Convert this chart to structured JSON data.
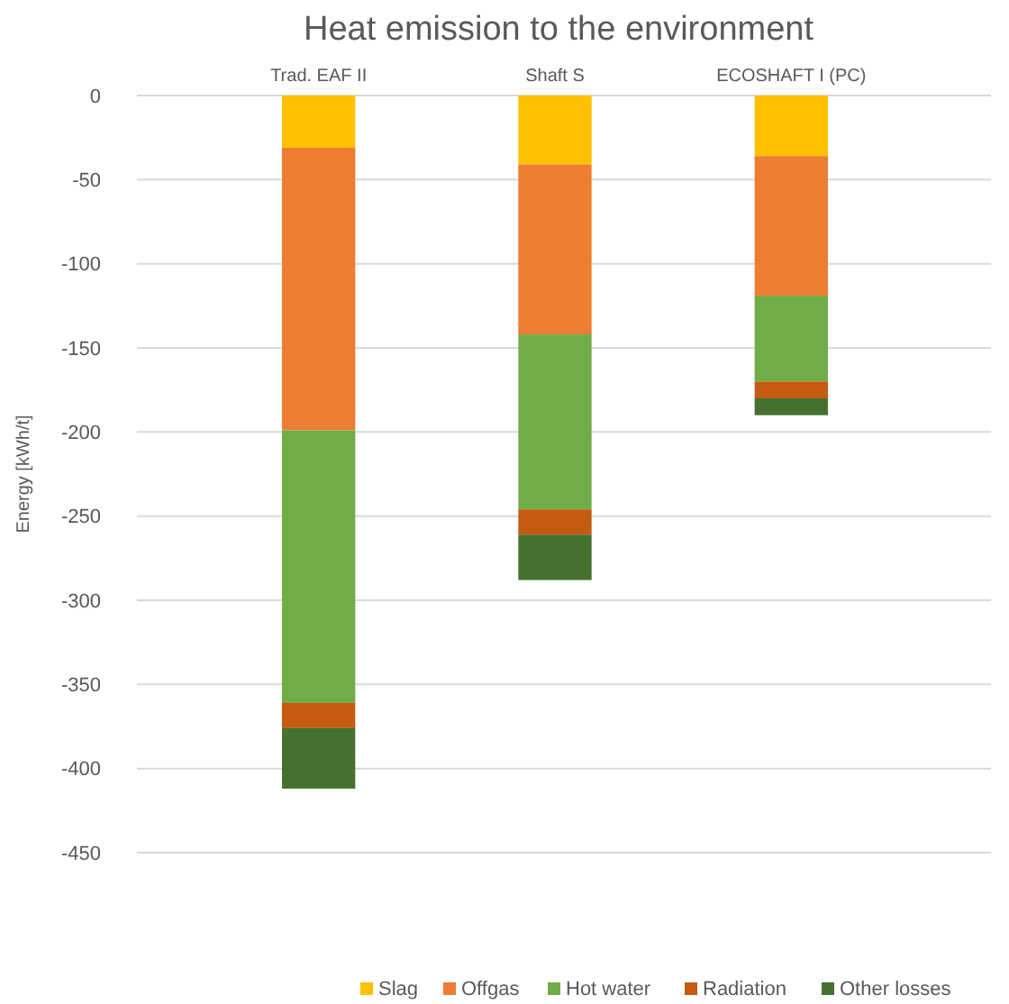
{
  "chart_data": {
    "type": "bar",
    "title": "Heat emission to the environment",
    "ylabel": "Energy [kWh/t]",
    "categories": [
      "Trad. EAF II",
      "Shaft S",
      "ECOSHAFT I (PC)"
    ],
    "stacked": true,
    "ylim": [
      -450,
      0
    ],
    "yticks": [
      0,
      -50,
      -100,
      -150,
      -200,
      -250,
      -300,
      -350,
      -400,
      -450
    ],
    "grid": "y",
    "legend": "bottom right",
    "series": [
      {
        "name": "Slag",
        "color": "#ffc000",
        "values": [
          -31,
          -41,
          -36
        ]
      },
      {
        "name": "Offgas",
        "color": "#ed7d31",
        "values": [
          -168,
          -101,
          -83
        ]
      },
      {
        "name": "Hot water",
        "color": "#70ad47",
        "values": [
          -162,
          -104,
          -51
        ]
      },
      {
        "name": "Radiation",
        "color": "#c55a11",
        "values": [
          -15,
          -15,
          -10
        ]
      },
      {
        "name": "Other losses",
        "color": "#44722e",
        "values": [
          -36,
          -27,
          -10
        ]
      }
    ]
  }
}
